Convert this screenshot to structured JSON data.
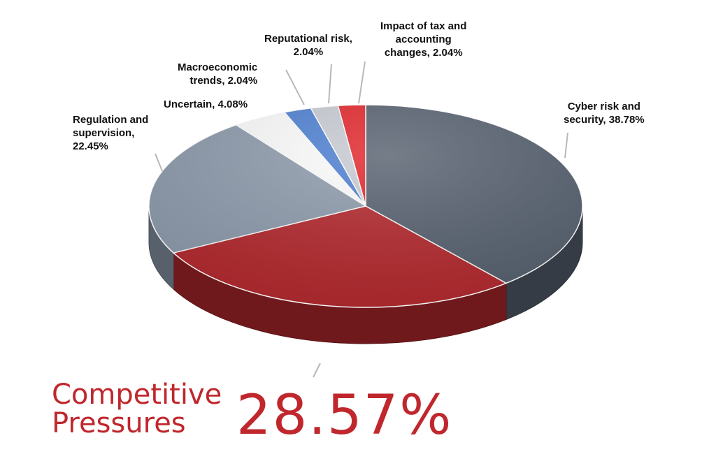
{
  "chart_data": {
    "type": "pie",
    "style": "3d",
    "slices": [
      {
        "label": "Cyber risk and security",
        "value": 38.78,
        "color": "#56616f",
        "text": "Cyber risk and\nsecurity, 38.78%"
      },
      {
        "label": "Competitive Pressures",
        "value": 28.57,
        "color": "#b4282d",
        "text": "Competitive\nPressures"
      },
      {
        "label": "Regulation and supervision",
        "value": 22.45,
        "color": "#8e9cad",
        "text": "Regulation and\nsupervision,\n22.45%"
      },
      {
        "label": "Uncertain",
        "value": 4.08,
        "color": "#fdfdfd",
        "text": "Uncertain, 4.08%"
      },
      {
        "label": "Macroeconomic trends",
        "value": 2.04,
        "color": "#4e80d3",
        "text": "Macroeconomic\ntrends, 2.04%"
      },
      {
        "label": "Reputational risk",
        "value": 2.04,
        "color": "#c8ccd3",
        "text": "Reputational risk,\n2.04%"
      },
      {
        "label": "Impact of tax and accounting changes",
        "value": 2.04,
        "color": "#e2262b",
        "text": "Impact of tax and\naccounting\nchanges, 2.04%"
      }
    ],
    "highlight": {
      "label": "Competitive\nPressures",
      "value_text": "28.57%",
      "color": "#c0272d"
    }
  }
}
